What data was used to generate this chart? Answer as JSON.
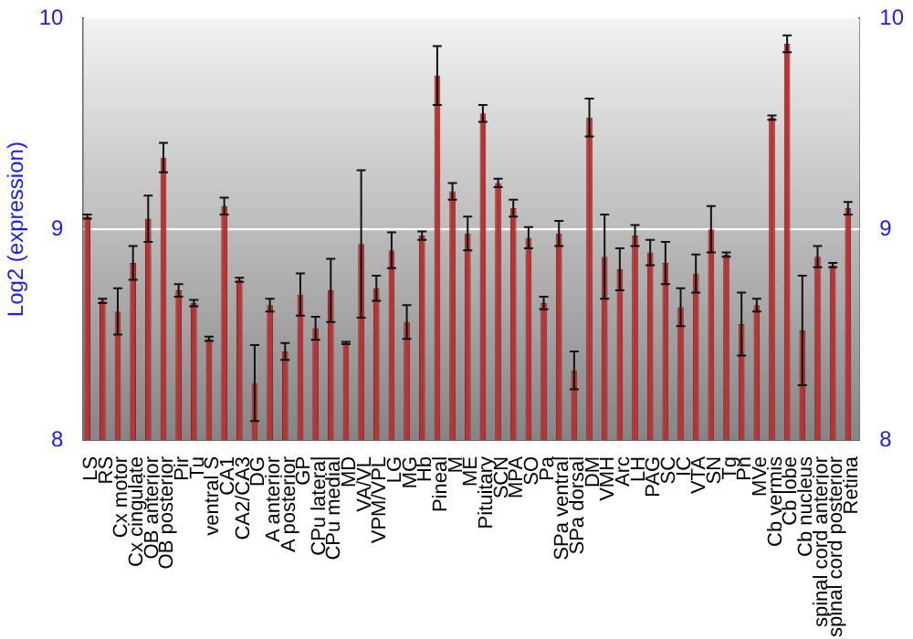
{
  "chart_data": {
    "type": "bar",
    "ylabel": "Log2 (expression)",
    "categories": [
      "LS",
      "RS",
      "Cx motor",
      "Cx cingulate",
      "OB anterior",
      "OB posterior",
      "Pir",
      "Tu",
      "ventral S",
      "CA1",
      "CA2/CA3",
      "DG",
      "A anterior",
      "A posterior",
      "GP",
      "CPu lateral",
      "CPu medial",
      "MD",
      "VA/VL",
      "VPM/VPL",
      "LG",
      "MG",
      "Hb",
      "Pineal",
      "M",
      "ME",
      "Pituitary",
      "SCN",
      "MPA",
      "SO",
      "Pa",
      "SPa ventral",
      "SPa dorsal",
      "DM",
      "VMH",
      "Arc",
      "LH",
      "PAG",
      "SC",
      "IC",
      "VTA",
      "SN",
      "Tg",
      "Pn",
      "MVe",
      "Cb vermis",
      "Cb lobe",
      "Cb nucleus",
      "spinal cord anterior",
      "spinal cord posterior",
      "Retina"
    ],
    "values": [
      9.06,
      8.66,
      8.61,
      8.84,
      9.05,
      9.34,
      8.71,
      8.65,
      8.48,
      9.11,
      8.76,
      8.27,
      8.64,
      8.42,
      8.69,
      8.53,
      8.71,
      8.46,
      8.93,
      8.72,
      8.9,
      8.56,
      8.97,
      9.73,
      9.18,
      8.98,
      9.55,
      9.22,
      9.1,
      8.96,
      8.65,
      8.98,
      8.33,
      9.53,
      8.87,
      8.81,
      8.97,
      8.89,
      8.84,
      8.63,
      8.79,
      9.0,
      8.88,
      8.55,
      8.64,
      9.53,
      9.88,
      8.52,
      8.87,
      8.83,
      9.1
    ],
    "errors": [
      0.01,
      0.01,
      0.11,
      0.08,
      0.11,
      0.07,
      0.03,
      0.015,
      0.01,
      0.04,
      0.01,
      0.18,
      0.03,
      0.04,
      0.1,
      0.055,
      0.15,
      0.005,
      0.35,
      0.06,
      0.085,
      0.08,
      0.02,
      0.14,
      0.04,
      0.08,
      0.04,
      0.02,
      0.04,
      0.05,
      0.03,
      0.06,
      0.09,
      0.09,
      0.2,
      0.1,
      0.05,
      0.06,
      0.1,
      0.09,
      0.09,
      0.11,
      0.01,
      0.15,
      0.03,
      0.01,
      0.04,
      0.26,
      0.05,
      0.01,
      0.03
    ],
    "color": "#b83434",
    "ylim": [
      8,
      10
    ],
    "yticks": [
      8,
      9,
      10
    ],
    "y2lim": [
      8,
      10
    ],
    "y2ticks": [
      8,
      9,
      10
    ],
    "grid": "y",
    "legend": false
  }
}
